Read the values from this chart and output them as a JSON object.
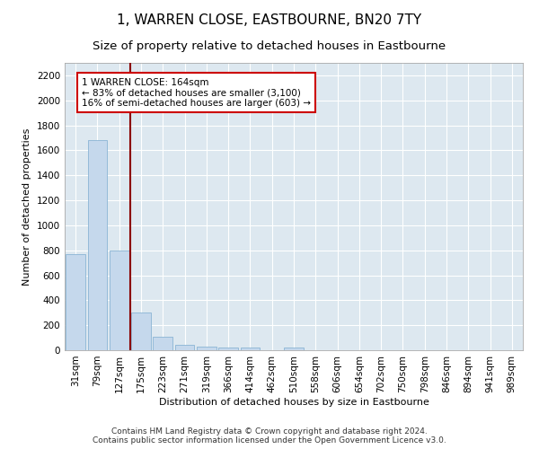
{
  "title": "1, WARREN CLOSE, EASTBOURNE, BN20 7TY",
  "subtitle": "Size of property relative to detached houses in Eastbourne",
  "xlabel": "Distribution of detached houses by size in Eastbourne",
  "ylabel": "Number of detached properties",
  "categories": [
    "31sqm",
    "79sqm",
    "127sqm",
    "175sqm",
    "223sqm",
    "271sqm",
    "319sqm",
    "366sqm",
    "414sqm",
    "462sqm",
    "510sqm",
    "558sqm",
    "606sqm",
    "654sqm",
    "702sqm",
    "750sqm",
    "798sqm",
    "846sqm",
    "894sqm",
    "941sqm",
    "989sqm"
  ],
  "values": [
    770,
    1680,
    800,
    300,
    110,
    45,
    32,
    25,
    22,
    0,
    20,
    0,
    0,
    0,
    0,
    0,
    0,
    0,
    0,
    0,
    0
  ],
  "bar_color": "#c5d8ec",
  "bar_edge_color": "#8ab4d4",
  "vline_x": 2.5,
  "vline_color": "#8b0000",
  "annotation_text": "1 WARREN CLOSE: 164sqm\n← 83% of detached houses are smaller (3,100)\n16% of semi-detached houses are larger (603) →",
  "annotation_box_color": "#ffffff",
  "annotation_box_edge_color": "#cc0000",
  "ylim": [
    0,
    2300
  ],
  "yticks": [
    0,
    200,
    400,
    600,
    800,
    1000,
    1200,
    1400,
    1600,
    1800,
    2000,
    2200
  ],
  "fig_bg_color": "#ffffff",
  "bg_color": "#dde8f0",
  "grid_color": "#ffffff",
  "footer": "Contains HM Land Registry data © Crown copyright and database right 2024.\nContains public sector information licensed under the Open Government Licence v3.0.",
  "title_fontsize": 11,
  "subtitle_fontsize": 9.5,
  "label_fontsize": 8,
  "annot_fontsize": 7.5,
  "tick_fontsize": 7.5,
  "footer_fontsize": 6.5
}
